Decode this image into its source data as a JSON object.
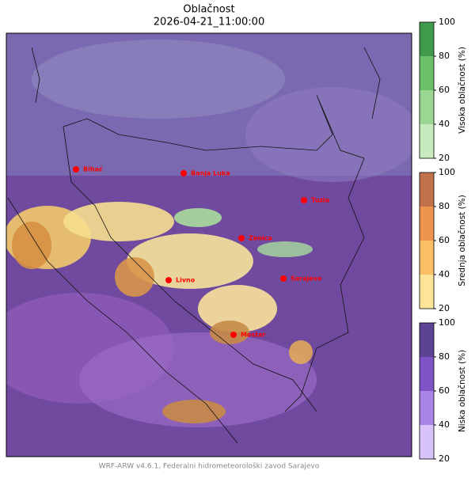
{
  "title": "Oblačnost",
  "timestamp": "2026-04-21_11:00:00",
  "cities": [
    {
      "name": "Bihać"
    },
    {
      "name": "Banja Luka"
    },
    {
      "name": "Tuzla"
    },
    {
      "name": "Zenica"
    },
    {
      "name": "Livno"
    },
    {
      "name": "Sarajevo"
    },
    {
      "name": "Mostar"
    }
  ],
  "colorbars": [
    {
      "label": "Visoka oblačnost (%)",
      "range": [
        20,
        100
      ],
      "ticks": [
        20,
        40,
        60,
        80,
        100
      ],
      "colors": [
        "#c7ebbf",
        "#9bd792",
        "#6abf67",
        "#3f9a4c"
      ]
    },
    {
      "label": "Srednja oblačnost (%)",
      "range": [
        20,
        100
      ],
      "ticks": [
        20,
        40,
        60,
        80,
        100
      ],
      "colors": [
        "#fde499",
        "#fbbf66",
        "#ee9350",
        "#c2724b"
      ]
    },
    {
      "label": "Niska oblačnost (%)",
      "range": [
        20,
        100
      ],
      "ticks": [
        20,
        40,
        60,
        80,
        100
      ],
      "colors": [
        "#d7c2fa",
        "#a885e6",
        "#7e54c6",
        "#5d4394"
      ]
    }
  ],
  "footer": "WRF-ARW v4.6.1, Federalni hidrometeorološki zavod Sarajevo"
}
